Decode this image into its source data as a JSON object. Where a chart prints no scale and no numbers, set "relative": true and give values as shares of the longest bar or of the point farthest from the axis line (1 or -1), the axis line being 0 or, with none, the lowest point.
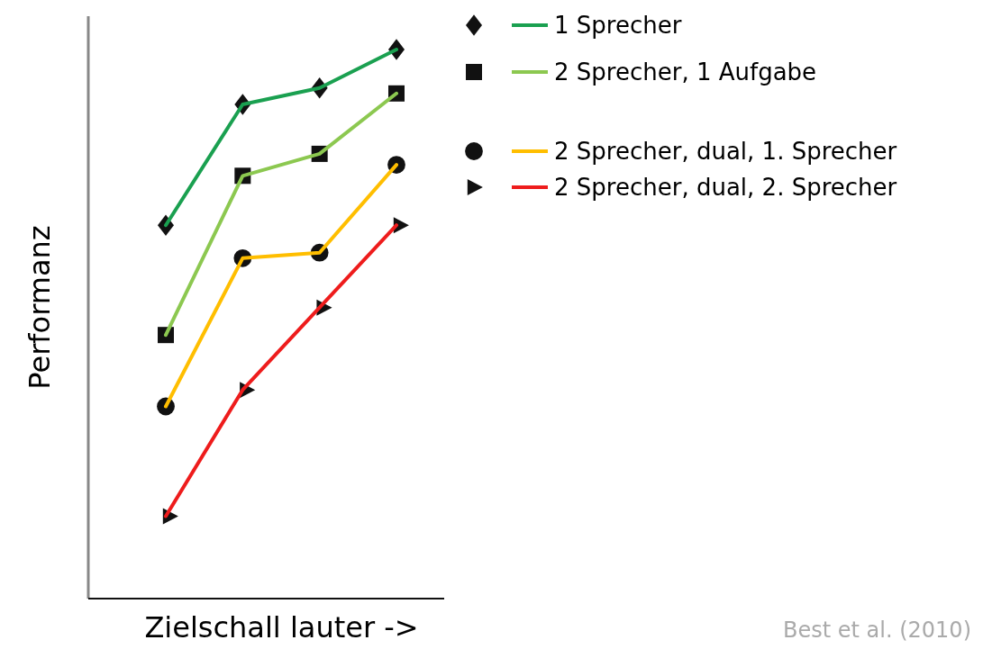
{
  "chart_data": {
    "type": "line",
    "relative": true,
    "xlabel": "Zielschall lauter ->",
    "ylabel": "Performanz",
    "categories": [
      null,
      null,
      null,
      null
    ],
    "legend": "right",
    "annotations": [
      "Best et al. (2010)"
    ],
    "series": [
      {
        "name": "1 Sprecher",
        "color": "#1aa050",
        "marker": "diamond",
        "values": [
          0.68,
          0.9,
          0.93,
          1
        ]
      },
      {
        "name": "2 Sprecher, 1 Aufgabe",
        "color": "#8cc850",
        "marker": "square",
        "values": [
          0.48,
          0.77,
          0.81,
          0.92
        ]
      },
      {
        "name": "2 Sprecher, dual, 1. Sprecher",
        "color": "#ffbe00",
        "marker": "circle",
        "values": [
          0.35,
          0.62,
          0.63,
          0.79
        ]
      },
      {
        "name": "2 Sprecher, dual, 2. Sprecher",
        "color": "#ee1c1c",
        "marker": "triangle",
        "values": [
          0.15,
          0.38,
          0.53,
          0.68
        ]
      }
    ]
  }
}
